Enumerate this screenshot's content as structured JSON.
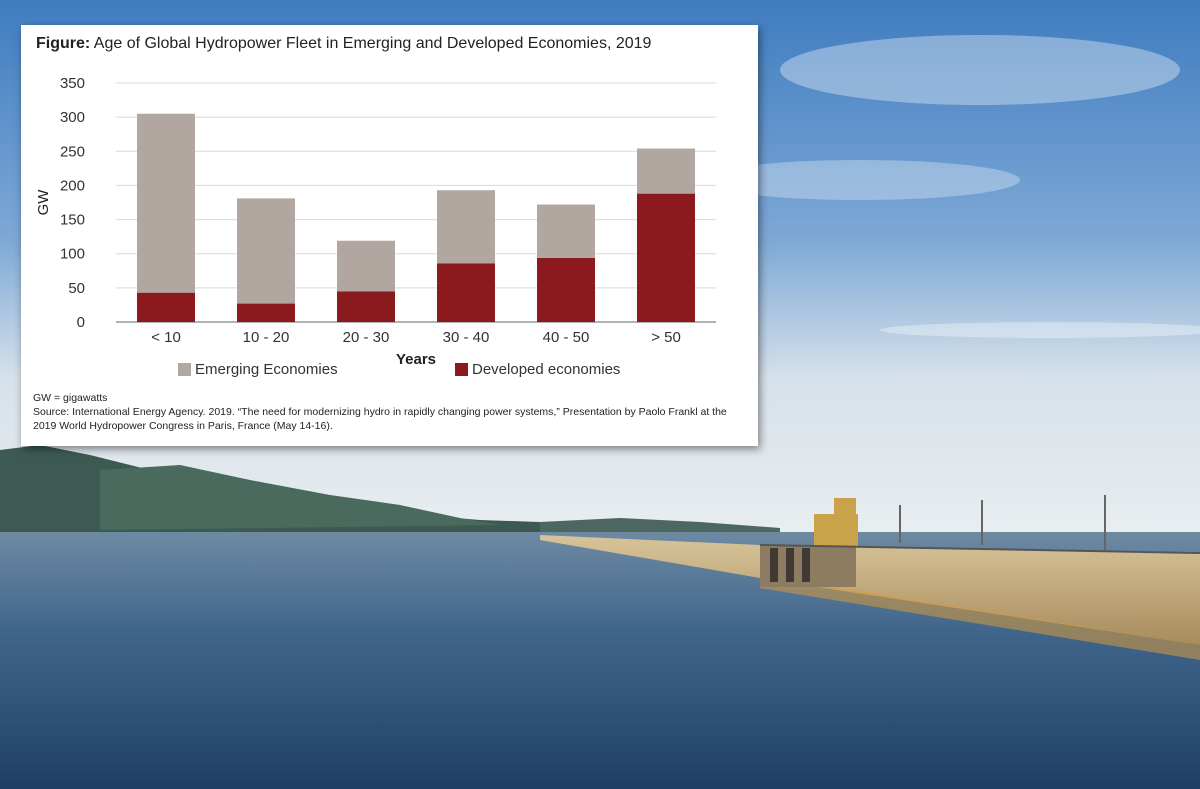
{
  "figure": {
    "title_prefix": "Figure:",
    "title_text": "Age of Global Hydropower Fleet in Emerging and Developed Economies, 2019",
    "note_unit": "GW = gigawatts",
    "note_source": "Source: International Energy Agency. 2019. “The need for modernizing hydro in rapidly changing power systems,” Presentation by Paolo Frankl at the 2019 World Hydropower Congress in Paris, France (May 14-16)."
  },
  "colors": {
    "emerging": "#b1a7a0",
    "developed": "#8b1a1e",
    "grid": "#d9d9d9",
    "axis": "#666666"
  },
  "chart_data": {
    "type": "bar",
    "stacked": true,
    "categories": [
      "< 10",
      "10 - 20",
      "20 - 30",
      "30 - 40",
      "40 - 50",
      "> 50"
    ],
    "series": [
      {
        "name": "Developed economies",
        "values": [
          43,
          27,
          45,
          86,
          94,
          188
        ]
      },
      {
        "name": "Emerging Economies",
        "values": [
          262,
          154,
          74,
          107,
          78,
          66
        ]
      }
    ],
    "xlabel": "Years",
    "ylabel": "GW",
    "ylim": [
      0,
      350
    ],
    "yticks": [
      0,
      50,
      100,
      150,
      200,
      250,
      300,
      350
    ],
    "grid": true,
    "legend_position": "bottom"
  }
}
